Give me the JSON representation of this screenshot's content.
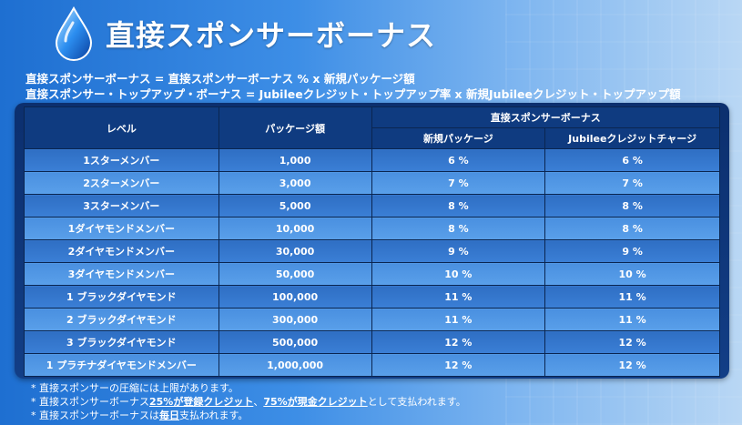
{
  "header": {
    "title": "直接スポンサーボーナス",
    "icon": "water-drop-icon"
  },
  "formulas": {
    "line1": "直接スポンサーボーナス = 直接スポンサーボーナス % x 新規パッケージ額",
    "line2": "直接スポンサー・トップアップ・ボーナス = Jubileeクレジット・トップアップ率 x 新規Jubileeクレジット・トップアップ額"
  },
  "table": {
    "headers": {
      "level": "レベル",
      "package": "パッケージ額",
      "bonus_group": "直接スポンサーボーナス",
      "new_package": "新規パッケージ",
      "jubilee_charge": "Jubileeクレジットチャージ"
    },
    "rows": [
      {
        "level": "1スターメンバー",
        "amount": "1,000",
        "new": "6 %",
        "jubilee": "6 %"
      },
      {
        "level": "2スターメンバー",
        "amount": "3,000",
        "new": "7 %",
        "jubilee": "7 %"
      },
      {
        "level": "3スターメンバー",
        "amount": "5,000",
        "new": "8 %",
        "jubilee": "8 %"
      },
      {
        "level": "1ダイヤモンドメンバー",
        "amount": "10,000",
        "new": "8 %",
        "jubilee": "8 %"
      },
      {
        "level": "2ダイヤモンドメンバー",
        "amount": "30,000",
        "new": "9 %",
        "jubilee": "9 %"
      },
      {
        "level": "3ダイヤモンドメンバー",
        "amount": "50,000",
        "new": "10 %",
        "jubilee": "10 %"
      },
      {
        "level": "1 ブラックダイヤモンド",
        "amount": "100,000",
        "new": "11 %",
        "jubilee": "11 %"
      },
      {
        "level": "2 ブラックダイヤモンド",
        "amount": "300,000",
        "new": "11 %",
        "jubilee": "11 %"
      },
      {
        "level": "3 ブラックダイヤモンド",
        "amount": "500,000",
        "new": "12 %",
        "jubilee": "12 %"
      },
      {
        "level": "1 プラチナダイヤモンドメンバー",
        "amount": "1,000,000",
        "new": "12 %",
        "jubilee": "12 %"
      }
    ]
  },
  "notes": {
    "n1": "* 直接スポンサーの圧縮には上限があります。",
    "n2_a": "* 直接スポンサーボーナス",
    "n2_b": "25%が登録クレジット",
    "n2_c": "、",
    "n2_d": "75%が現金クレジット",
    "n2_e": "として支払われます。",
    "n3_a": "* 直接スポンサーボーナスは",
    "n3_b": "毎日",
    "n3_c": "支払われます。"
  }
}
